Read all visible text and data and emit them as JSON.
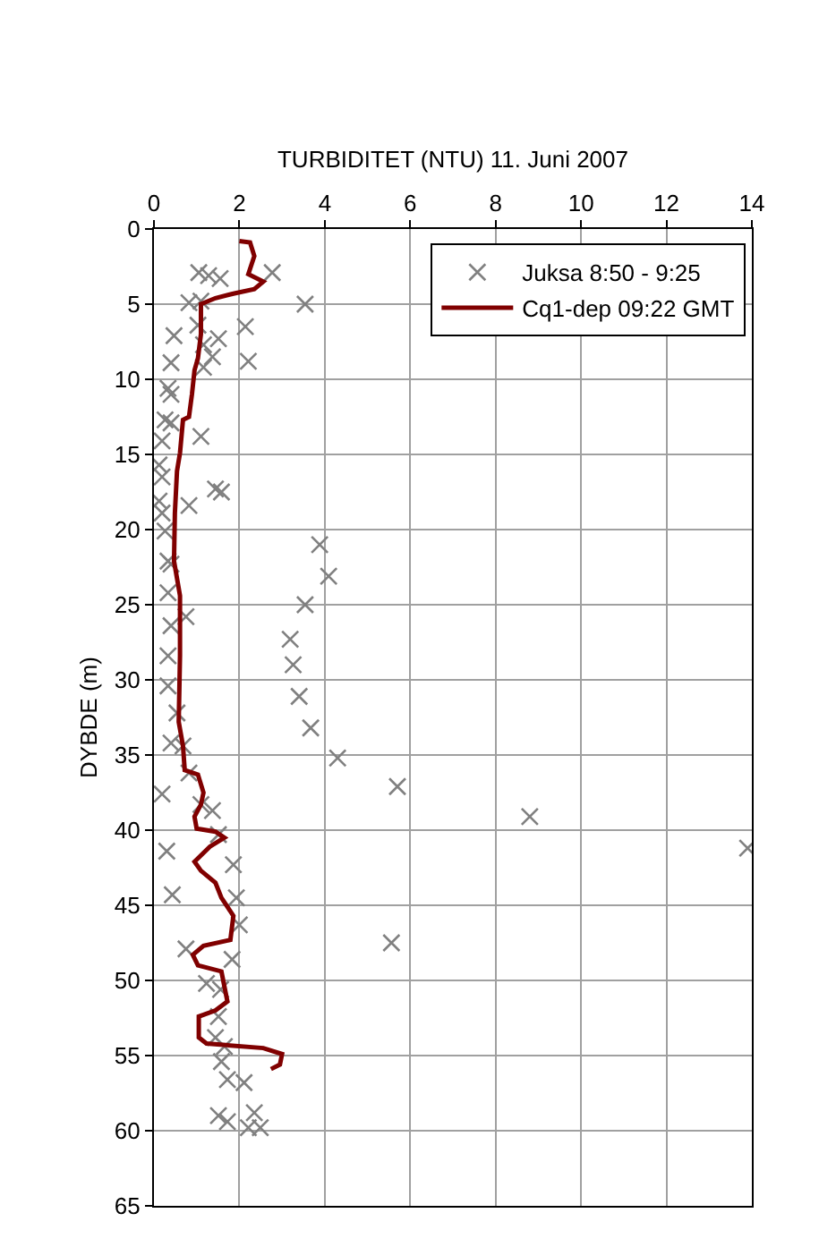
{
  "chart_data": {
    "type": "scatter",
    "xlabel": "TURBIDITET (NTU) 11. Juni 2007",
    "ylabel": "DYBDE (m)",
    "xlim": [
      0,
      14
    ],
    "xticks": [
      0,
      2,
      4,
      6,
      8,
      10,
      12,
      14
    ],
    "ylim": [
      65,
      0
    ],
    "yticks": [
      0,
      5,
      10,
      15,
      20,
      25,
      30,
      35,
      40,
      45,
      50,
      55,
      60,
      65
    ],
    "grid": true,
    "legend": "top right",
    "series": [
      {
        "name": "Juksa 8:50 - 9:25",
        "marker": "cross",
        "color": "#808080",
        "x": [
          1.05,
          1.28,
          1.55,
          2.77,
          3.54,
          0.82,
          1.1,
          1.03,
          2.14,
          0.47,
          1.51,
          1.16,
          1.37,
          2.21,
          0.4,
          1.16,
          0.33,
          0.4,
          0.26,
          0.4,
          1.1,
          0.19,
          0.12,
          0.19,
          1.44,
          1.58,
          0.12,
          0.82,
          0.19,
          0.26,
          3.88,
          0.33,
          4.09,
          0.4,
          0.33,
          3.54,
          0.4,
          0.75,
          3.19,
          3.26,
          0.33,
          0.33,
          3.4,
          0.54,
          3.67,
          0.4,
          0.68,
          4.3,
          0.19,
          0.82,
          1.1,
          1.37,
          5.7,
          1.51,
          0.3,
          1.86,
          8.8,
          13.9,
          0.43,
          1.93,
          2.0,
          5.56,
          0.75,
          1.83,
          1.23,
          1.56,
          1.51,
          1.44,
          1.65,
          1.58,
          1.72,
          2.11,
          1.51,
          1.72,
          2.35,
          2.21,
          2.49
        ],
        "values": [
          2.9,
          3.1,
          3.3,
          2.9,
          5.0,
          4.9,
          4.8,
          6.4,
          6.5,
          7.1,
          7.3,
          7.7,
          8.5,
          8.8,
          8.9,
          9.2,
          10.6,
          11.0,
          12.7,
          12.9,
          13.8,
          14.1,
          15.7,
          16.5,
          17.3,
          17.5,
          18.1,
          18.4,
          18.9,
          20.1,
          21.0,
          22.1,
          23.1,
          22.3,
          24.2,
          25.0,
          26.4,
          25.8,
          27.3,
          29.0,
          28.4,
          30.4,
          31.1,
          32.2,
          33.2,
          34.2,
          34.4,
          35.2,
          37.6,
          36.2,
          38.3,
          38.7,
          37.1,
          40.3,
          41.4,
          42.3,
          39.1,
          41.2,
          44.3,
          44.5,
          46.3,
          47.5,
          47.9,
          48.6,
          50.2,
          50.6,
          52.4,
          53.8,
          54.4,
          55.4,
          56.6,
          56.8,
          59.0,
          59.4,
          58.8,
          59.8,
          59.8
        ]
      },
      {
        "name": "Cq1-dep 09:22 GMT",
        "type": "line",
        "marker": "none",
        "line_style": "solid",
        "color": "#800000",
        "x": [
          2.0,
          2.25,
          2.35,
          2.21,
          2.56,
          2.35,
          1.86,
          1.44,
          1.1,
          1.1,
          1.03,
          0.95,
          0.89,
          0.82,
          0.68,
          0.61,
          0.54,
          0.49,
          0.47,
          0.61,
          0.61,
          0.58,
          0.68,
          0.72,
          1.03,
          1.16,
          1.1,
          0.95,
          1.0,
          1.44,
          1.65,
          1.31,
          0.95,
          1.1,
          1.44,
          1.58,
          1.86,
          1.79,
          1.16,
          0.91,
          1.03,
          1.58,
          1.65,
          1.72,
          1.44,
          1.05,
          1.05,
          1.23,
          2.56,
          3.0,
          2.95,
          2.74
        ],
        "values": [
          0.8,
          0.9,
          1.8,
          3.0,
          3.5,
          4.0,
          4.3,
          4.6,
          5.0,
          7.0,
          8.6,
          9.4,
          11.0,
          12.5,
          12.7,
          14.9,
          16.1,
          18.9,
          22.1,
          24.4,
          28.4,
          32.8,
          34.4,
          36.0,
          36.3,
          37.5,
          38.3,
          39.1,
          39.9,
          40.1,
          40.5,
          41.1,
          42.1,
          42.7,
          43.5,
          44.5,
          45.7,
          47.3,
          47.7,
          48.3,
          49.0,
          49.4,
          50.4,
          51.4,
          52.0,
          52.4,
          53.8,
          54.2,
          54.5,
          54.9,
          55.6,
          55.9
        ]
      }
    ]
  }
}
